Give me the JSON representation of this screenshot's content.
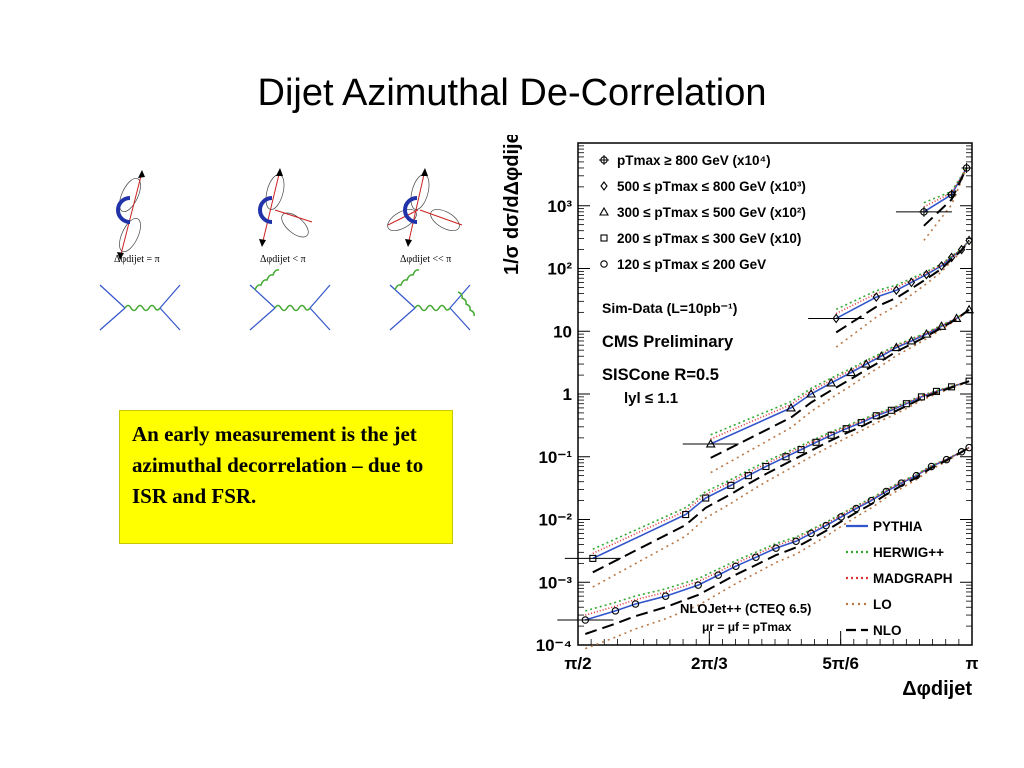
{
  "slide": {
    "title": "Dijet Azimuthal De-Correlation",
    "textbox": "An early measurement is the jet azimuthal decorrelation – due to ISR and FSR."
  },
  "diagrams": {
    "labels": [
      "Δφdijet = π",
      "Δφdijet < π",
      "Δφdijet << π"
    ],
    "colors": {
      "jet_lines": "#cc2222",
      "arc": "#2233aa",
      "quark_lines": "#3355cc",
      "gluon": "#44aa33"
    }
  },
  "chart_data": {
    "type": "scatter",
    "title": "",
    "ylabel": "1/σ dσ/dΔφdijet",
    "xlabel": "Δφdijet",
    "yscale": "log",
    "xlim": [
      1.5708,
      3.1416
    ],
    "ylim": [
      0.0001,
      10000
    ],
    "x_ticks": [
      {
        "value": 1.5708,
        "label": "π/2"
      },
      {
        "value": 2.0944,
        "label": "2π/3"
      },
      {
        "value": 2.618,
        "label": "5π/6"
      },
      {
        "value": 3.1416,
        "label": "π"
      }
    ],
    "y_ticks": [
      {
        "value": 0.0001,
        "label": "10⁻⁴"
      },
      {
        "value": 0.001,
        "label": "10⁻³"
      },
      {
        "value": 0.01,
        "label": "10⁻²"
      },
      {
        "value": 0.1,
        "label": "10⁻¹"
      },
      {
        "value": 1,
        "label": "1"
      },
      {
        "value": 10,
        "label": "10"
      },
      {
        "value": 100,
        "label": "10²"
      },
      {
        "value": 1000,
        "label": "10³"
      }
    ],
    "legend_top": [
      {
        "marker": "circle-cross",
        "label": "pTmax ≥ 800 GeV (x10⁴)"
      },
      {
        "marker": "diamond",
        "label": "500 ≤ pTmax ≤ 800 GeV (x10³)"
      },
      {
        "marker": "triangle",
        "label": "300 ≤ pTmax ≤ 500 GeV (x10²)"
      },
      {
        "marker": "square",
        "label": "200 ≤ pTmax ≤ 300 GeV (x10)"
      },
      {
        "marker": "circle",
        "label": "120 ≤ pTmax ≤ 200 GeV"
      }
    ],
    "annotations": [
      "Sim-Data (L=10pb⁻¹)",
      "CMS Preliminary",
      "SISCone R=0.5",
      "lyl ≤ 1.1",
      "NLOJet++ (CTEQ 6.5)",
      "μr = μf = pTmax"
    ],
    "legend_bottom": [
      {
        "label": "PYTHIA",
        "color": "#3355cc",
        "dash": "solid"
      },
      {
        "label": "HERWIG++",
        "color": "#33aa33",
        "dash": "dots"
      },
      {
        "label": "MADGRAPH",
        "color": "#dd3333",
        "dash": "dense-dots"
      },
      {
        "label": "LO",
        "color": "#bb7744",
        "dash": "dash-dot"
      },
      {
        "label": "NLO",
        "color": "#000000",
        "dash": "dash"
      }
    ],
    "series": [
      {
        "marker": "circle",
        "x": [
          1.6,
          1.72,
          1.8,
          1.92,
          2.05,
          2.13,
          2.2,
          2.28,
          2.36,
          2.44,
          2.5,
          2.56,
          2.62,
          2.68,
          2.74,
          2.8,
          2.86,
          2.92,
          2.98,
          3.04,
          3.1,
          3.13
        ],
        "values": [
          0.00025,
          0.00035,
          0.00045,
          0.0006,
          0.0009,
          0.0013,
          0.0018,
          0.0025,
          0.0035,
          0.0045,
          0.006,
          0.008,
          0.011,
          0.015,
          0.02,
          0.028,
          0.038,
          0.05,
          0.07,
          0.09,
          0.12,
          0.14
        ]
      },
      {
        "marker": "square",
        "x": [
          1.63,
          2.0,
          2.08,
          2.18,
          2.25,
          2.32,
          2.4,
          2.46,
          2.52,
          2.58,
          2.64,
          2.7,
          2.76,
          2.82,
          2.88,
          2.94,
          3.0,
          3.06,
          3.13
        ],
        "values": [
          0.0024,
          0.012,
          0.022,
          0.035,
          0.05,
          0.07,
          0.1,
          0.13,
          0.17,
          0.22,
          0.28,
          0.35,
          0.45,
          0.55,
          0.7,
          0.9,
          1.1,
          1.3,
          1.6
        ]
      },
      {
        "marker": "triangle",
        "x": [
          2.1,
          2.42,
          2.5,
          2.58,
          2.66,
          2.72,
          2.78,
          2.84,
          2.9,
          2.96,
          3.02,
          3.08,
          3.13
        ],
        "values": [
          0.16,
          0.6,
          1.0,
          1.5,
          2.2,
          3.0,
          4.0,
          5.5,
          7.0,
          9.0,
          12.0,
          16.0,
          22.0
        ]
      },
      {
        "marker": "diamond",
        "x": [
          2.6,
          2.76,
          2.84,
          2.9,
          2.96,
          3.02,
          3.06,
          3.1,
          3.13
        ],
        "values": [
          16.0,
          35.0,
          45.0,
          60.0,
          80.0,
          110.0,
          150.0,
          200.0,
          280.0
        ]
      },
      {
        "marker": "circle-cross",
        "x": [
          2.95,
          3.06,
          3.12
        ],
        "values": [
          800.0,
          1500.0,
          4000.0
        ]
      }
    ]
  }
}
